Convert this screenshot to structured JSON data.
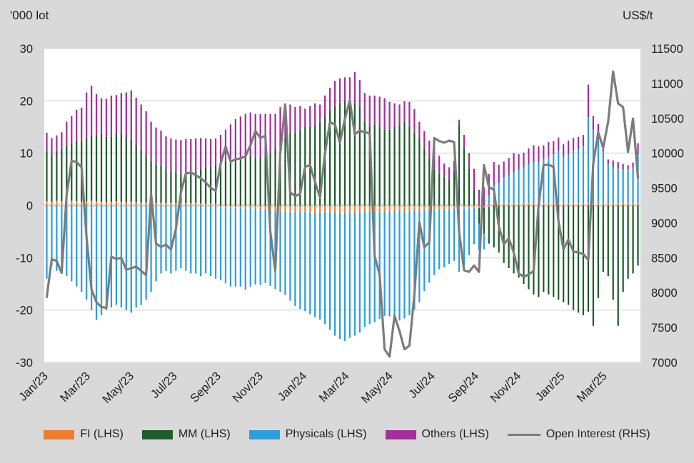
{
  "chart_data": {
    "type": "bar",
    "subtype": "stacked-bar-with-line-combo",
    "grid": {
      "on": true,
      "color": "#dedede",
      "zero_line_color": "#d6d6d6"
    },
    "plot_bg": "#ffffff",
    "legend_position": "bottom",
    "left_axis": {
      "title": "'000 lot",
      "min": -30,
      "max": 30,
      "ticks": [
        30,
        20,
        10,
        0,
        -10,
        -20,
        -30
      ]
    },
    "right_axis": {
      "title": "US$/t",
      "min": 7000,
      "max": 11500,
      "ticks": [
        11500,
        11000,
        10500,
        10000,
        9500,
        9000,
        8500,
        8000,
        7500,
        7000
      ]
    },
    "x_axis": {
      "weeks_total": 120,
      "tick_labels": [
        "Jan/23",
        "Mar/23",
        "May/23",
        "Jul/23",
        "Sep/23",
        "Nov/23",
        "Jan/24",
        "Mar/24",
        "May/24",
        "Jul/24",
        "Sep/24",
        "Nov/24",
        "Jan/25",
        "Mar/25"
      ],
      "tick_week_positions": [
        0,
        8.5,
        17.3,
        26.0,
        34.8,
        43.3,
        52.1,
        60.6,
        69.4,
        77.9,
        86.7,
        95.2,
        104.0,
        112.5
      ]
    },
    "series": [
      {
        "name": "FI (LHS)",
        "type": "bar",
        "axis": "left",
        "color": "#ED7D31",
        "values": [
          0.8,
          0.7,
          0.9,
          0.8,
          1.0,
          0.9,
          0.8,
          0.7,
          0.8,
          0.9,
          0.8,
          0.7,
          0.6,
          0.7,
          0.8,
          0.7,
          0.6,
          0.7,
          0.6,
          0.5,
          0.5,
          0.5,
          0.4,
          0.5,
          0.4,
          0.5,
          0.4,
          0.5,
          0.4,
          0.4,
          0.5,
          0.4,
          0.3,
          0.4,
          0.3,
          -0.3,
          -0.4,
          -0.5,
          -0.5,
          -0.5,
          -0.6,
          -0.5,
          -0.6,
          -0.7,
          -0.8,
          -0.9,
          -1.0,
          -1.0,
          -1.1,
          -1.2,
          -1.2,
          -1.3,
          -1.2,
          -1.3,
          -1.4,
          -1.3,
          -1.2,
          -1.3,
          -1.4,
          -1.5,
          -1.4,
          -1.3,
          -1.4,
          -1.3,
          -1.2,
          -1.2,
          -1.3,
          -1.2,
          -1.1,
          -1.2,
          -1.1,
          -1.0,
          -1.1,
          -1.0,
          -0.9,
          -1.0,
          -0.9,
          -0.8,
          -0.8,
          -0.7,
          -0.8,
          -0.7,
          -0.6,
          -0.7,
          -0.6,
          -0.5,
          -0.4,
          -0.5,
          -0.4,
          -0.3,
          0.3,
          0.3,
          0.4,
          0.3,
          0.4,
          0.3,
          0.3,
          0.4,
          0.3,
          0.3,
          0.4,
          0.3,
          0.3,
          0.4,
          0.3,
          0.3,
          0.4,
          0.3,
          0.3,
          0.4,
          0.3,
          0.3,
          0.4,
          0.3,
          0.3,
          0.3,
          0.4,
          0.3,
          0.3,
          0.3
        ]
      },
      {
        "name": "MM (LHS)",
        "type": "bar",
        "axis": "left",
        "color": "#1F5C2C",
        "values": [
          9.5,
          9.0,
          9.5,
          10.0,
          10.5,
          11.0,
          11.5,
          11.5,
          12.0,
          12.5,
          12.5,
          13.0,
          12.5,
          12.5,
          13.0,
          13.0,
          12.5,
          12.0,
          11.0,
          10.0,
          9.0,
          8.0,
          7.5,
          7.0,
          6.5,
          6.0,
          6.0,
          5.5,
          5.5,
          6.0,
          6.0,
          6.5,
          7.0,
          7.0,
          7.5,
          8.0,
          8.5,
          9.0,
          9.0,
          9.0,
          9.5,
          9.5,
          9.0,
          9.0,
          9.5,
          10.0,
          11.0,
          12.0,
          13.0,
          14.0,
          14.0,
          14.5,
          15.0,
          15.0,
          15.5,
          16.0,
          17.0,
          18.0,
          19.0,
          19.5,
          20.0,
          20.0,
          19.5,
          19.0,
          16.0,
          15.0,
          15.5,
          15.0,
          14.5,
          14.5,
          15.0,
          15.5,
          16.0,
          15.0,
          14.0,
          13.0,
          11.0,
          9.0,
          7.0,
          6.0,
          5.5,
          5.0,
          6.5,
          15.5,
          11.0,
          7.0,
          3.0,
          -3.0,
          -5.0,
          -7.0,
          -8.0,
          -9.0,
          -11.0,
          -12.0,
          -13.0,
          -13.8,
          -15.0,
          -16.0,
          -17.0,
          -17.5,
          -16.5,
          -17.0,
          -17.5,
          -18.0,
          -18.5,
          -19.0,
          -20.0,
          -20.5,
          -21.0,
          -20.3,
          -23.0,
          -17.7,
          -12.7,
          -13.5,
          -18.0,
          -23.0,
          -16.5,
          -14.0,
          -13.0,
          -11.5
        ]
      },
      {
        "name": "Physicals (LHS)",
        "type": "bar",
        "axis": "left",
        "color": "#2D9FD8",
        "values": [
          -14.0,
          -11.5,
          -12.5,
          -13.0,
          -13.5,
          -14.5,
          -15.5,
          -16.5,
          -18.0,
          -20.0,
          -21.9,
          -21.0,
          -20.0,
          -19.5,
          -19.0,
          -19.5,
          -20.0,
          -20.5,
          -19.5,
          -19.0,
          -18.0,
          -16.5,
          -14.5,
          -13.0,
          -12.5,
          -13.0,
          -12.5,
          -12.0,
          -12.5,
          -13.0,
          -13.0,
          -13.5,
          -13.0,
          -13.5,
          -14.0,
          -14.0,
          -14.5,
          -15.0,
          -15.0,
          -15.0,
          -15.5,
          -15.0,
          -14.5,
          -14.5,
          -14.0,
          -14.5,
          -15.0,
          -15.5,
          -16.0,
          -17.0,
          -18.0,
          -18.5,
          -19.0,
          -19.5,
          -20.0,
          -20.5,
          -21.5,
          -22.5,
          -23.5,
          -24.0,
          -24.5,
          -24.0,
          -23.5,
          -23.0,
          -22.0,
          -21.5,
          -21.0,
          -20.5,
          -20.0,
          -20.0,
          -20.5,
          -21.0,
          -20.5,
          -20.0,
          -19.0,
          -17.5,
          -15.5,
          -14.0,
          -12.5,
          -11.5,
          -11.0,
          -10.5,
          -10.0,
          -12.0,
          -11.0,
          -9.0,
          -7.0,
          -5.0,
          -3.0,
          2.0,
          3.5,
          4.0,
          5.0,
          5.5,
          6.0,
          6.5,
          7.0,
          7.5,
          8.0,
          8.0,
          8.5,
          9.0,
          9.5,
          10.0,
          9.0,
          9.5,
          10.0,
          10.5,
          11.0,
          16.5,
          14.2,
          12.4,
          9.9,
          7.6,
          7.0,
          6.8,
          6.5,
          6.6,
          7.0,
          9.5
        ]
      },
      {
        "name": "Others (LHS)",
        "type": "bar",
        "axis": "left",
        "color": "#A2309B",
        "values": [
          3.6,
          3.2,
          3.0,
          3.2,
          4.5,
          5.2,
          6.0,
          6.5,
          8.8,
          9.5,
          8.0,
          6.8,
          7.3,
          7.8,
          7.3,
          7.8,
          8.5,
          9.3,
          9.0,
          8.8,
          8.5,
          7.5,
          7.0,
          6.8,
          6.3,
          6.3,
          6.2,
          6.5,
          6.8,
          6.3,
          6.3,
          6.0,
          5.5,
          5.3,
          5.0,
          5.5,
          6.0,
          6.5,
          7.5,
          8.0,
          8.0,
          8.3,
          8.5,
          8.5,
          8.0,
          7.5,
          6.5,
          6.8,
          6.0,
          5.3,
          4.8,
          4.5,
          3.5,
          4.0,
          4.0,
          3.3,
          4.0,
          4.5,
          4.8,
          4.8,
          4.5,
          4.5,
          6.0,
          5.0,
          5.5,
          6.0,
          5.5,
          5.8,
          6.0,
          5.3,
          4.5,
          3.8,
          3.9,
          4.8,
          4.4,
          3.0,
          3.2,
          3.4,
          4.5,
          3.5,
          2.5,
          2.3,
          2.0,
          0.9,
          2.5,
          3.0,
          4.0,
          3.0,
          3.5,
          4.0,
          4.5,
          3.5,
          3.0,
          3.3,
          3.6,
          3.0,
          2.8,
          3.0,
          3.2,
          3.0,
          2.6,
          2.8,
          2.5,
          2.6,
          2.4,
          2.6,
          2.5,
          2.3,
          2.2,
          6.2,
          2.6,
          2.9,
          1.6,
          0.9,
          1.3,
          1.2,
          1.0,
          0.8,
          0.9,
          2.1
        ]
      },
      {
        "name": "Open Interest (RHS)",
        "type": "line",
        "axis": "right",
        "color": "#7C7C7C",
        "values": [
          7938,
          8478,
          8455,
          8283,
          9400,
          9888,
          9873,
          9798,
          8800,
          8050,
          7863,
          7795,
          7780,
          8515,
          8485,
          8500,
          8328,
          8350,
          8373,
          8313,
          8253,
          9415,
          8703,
          8658,
          8688,
          8620,
          8913,
          9438,
          9708,
          9723,
          9685,
          9640,
          9580,
          9505,
          9460,
          9850,
          10098,
          9880,
          9910,
          9925,
          9955,
          10113,
          10315,
          10218,
          10248,
          8875,
          8313,
          10000,
          10698,
          9438,
          9385,
          9415,
          9805,
          9828,
          9588,
          9363,
          10000,
          10443,
          10413,
          10150,
          10488,
          10758,
          10270,
          10323,
          10300,
          10285,
          8523,
          8260,
          7188,
          7083,
          7668,
          7450,
          7188,
          7240,
          7975,
          9010,
          8650,
          8725,
          10218,
          10173,
          10150,
          10180,
          10158,
          8875,
          8320,
          8298,
          8388,
          8298,
          9828,
          9513,
          9475,
          8950,
          8695,
          8778,
          8575,
          8275,
          8230,
          8260,
          8313,
          9250,
          9828,
          9835,
          9805,
          9025,
          8620,
          8763,
          8590,
          8575,
          8553,
          8470,
          9850,
          10300,
          10075,
          10450,
          11170,
          10713,
          10660,
          10015,
          10495,
          9648
        ]
      }
    ]
  }
}
